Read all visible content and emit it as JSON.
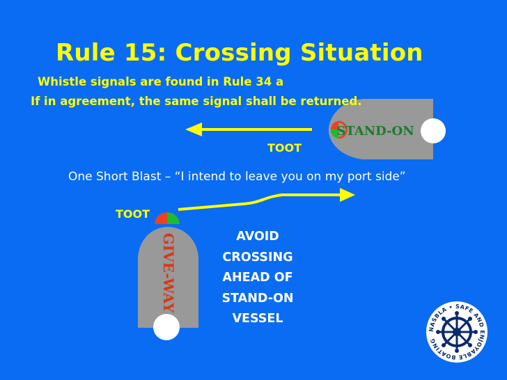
{
  "slide": {
    "title": "Rule 15: Crossing Situation",
    "subtitle_line1": "Whistle signals are found in Rule 34 a",
    "subtitle_line2": "If in agreement, the same signal shall be returned.",
    "toot_stand_on": "TOOT",
    "toot_give_way": "TOOT",
    "blast_text": "One Short Blast – “I intend to leave you on my port side”",
    "avoid_lines": [
      "AVOID",
      "CROSSING",
      "AHEAD OF",
      "STAND-ON",
      "VESSEL"
    ]
  },
  "vessels": {
    "stand_on": {
      "label": "STAND-ON"
    },
    "give_way": {
      "label": "GIVE-WAY"
    }
  },
  "logo": {
    "text": "NASBLA • SAFE AND ENJOYABLE BOATING"
  },
  "colors": {
    "background": "#0a6cf2",
    "text_yellow": "#ffff00",
    "text_white": "#ffffff",
    "hull": "#999999",
    "port_light": "#e8441f",
    "starboard_light": "#1ebc2c",
    "stand_on_label": "#1e7a2a",
    "give_way_label": "#d03a1e"
  },
  "icons": {
    "arrow_stand_on": "arrow-left-icon",
    "arrow_give_way": "arrow-right-icon",
    "logo": "ship-wheel-icon"
  }
}
